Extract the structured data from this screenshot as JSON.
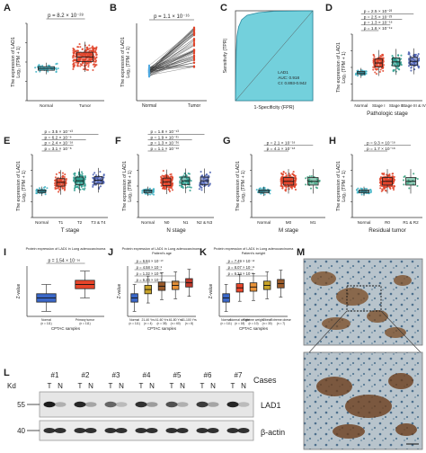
{
  "figure": {
    "panels": {
      "A": {
        "letter": "A",
        "p": "p = 8.2 × 10⁻²⁸",
        "ylabel1": "The expression of LAD1",
        "ylabel2": "Log₂ (TPM + 1)",
        "cats": [
          "Normal",
          "Tumor"
        ],
        "yticks": [
          "0",
          "3",
          "6",
          "9",
          "12"
        ]
      },
      "B": {
        "letter": "B",
        "p": "p = 1.1 × 10⁻¹⁶",
        "ylabel1": "The expression of LAD1",
        "ylabel2": "Log₂ (TPM + 1)",
        "cats": [
          "Normal",
          "Tumor"
        ],
        "yticks": [
          "0",
          "3",
          "6",
          "9",
          "12"
        ]
      },
      "C": {
        "letter": "C",
        "ylabel": "Sensitivity (TPR)",
        "xlabel": "1-Specificity (FPR)",
        "legend": [
          "LAD1",
          "AUC: 0.918",
          "CI: 0.893-0.942"
        ],
        "ticks": [
          "0.0",
          "0.2",
          "0.4",
          "0.6",
          "0.8",
          "1.0"
        ]
      },
      "D": {
        "letter": "D",
        "pvals": [
          "p = 1.6 × 10⁻¹⁹",
          "p = 1.3 × 10⁻¹⁸",
          "p = 2.5 × 10⁻²³",
          "p = 2.5 × 10⁻²³"
        ],
        "ylabel1": "The expression of LAD1",
        "ylabel2": "Log₂ (TPM + 1)",
        "xlabel": "Pathologic stage",
        "cats": [
          "Normal",
          "Stage I",
          "Stage II",
          "Stage III & IV"
        ]
      },
      "E": {
        "letter": "E",
        "pvals": [
          "p = 3.1 × 10⁻⁸",
          "p = 2.4 × 10⁻¹⁸",
          "p = 6.2 × 10⁻⁶",
          "p = 3.5 × 10⁻¹³"
        ],
        "ylabel1": "The expression of LAD1",
        "ylabel2": "Log₂ (TPM + 1)",
        "xlabel": "T stage",
        "cats": [
          "Normal",
          "T1",
          "T2",
          "T3 & T4"
        ]
      },
      "F": {
        "letter": "F",
        "pvals": [
          "p = 1.1 × 10⁻¹⁶",
          "p = 1.3 × 10⁻²⁶",
          "p = 1.9 × 10⁻²¹",
          "p = 1.8 × 10⁻¹³"
        ],
        "ylabel1": "The expression of LAD1",
        "ylabel2": "Log₂ (TPM + 1)",
        "xlabel": "N stage",
        "cats": [
          "Normal",
          "N0",
          "N1",
          "N2 & N3"
        ]
      },
      "G": {
        "letter": "G",
        "pvals": [
          "p = 4.1 × 10⁻¹⁸",
          "p = 2.1 × 10⁻¹⁸"
        ],
        "ylabel1": "The expression of LAD1",
        "ylabel2": "Log₂ (TPM + 1)",
        "xlabel": "M stage",
        "cats": [
          "Normal",
          "M0",
          "M1"
        ]
      },
      "H": {
        "letter": "H",
        "pvals": [
          "p = 1.7 × 10⁻¹⁸",
          "p = 9.3 × 10⁻¹⁸"
        ],
        "ylabel1": "The expression of LAD1",
        "ylabel2": "Log₂ (TPM + 1)",
        "xlabel": "Residual tumor",
        "cats": [
          "Normal",
          "R0",
          "R1 & R2"
        ]
      },
      "I": {
        "letter": "I",
        "title": "Protein expression of LAD1 in Lung adenocarcinoma",
        "p": "p = 1.54 × 10⁻¹⁶",
        "ylabel": "Z-value",
        "xlabel": "CPTAC samples",
        "cats": [
          "Normal\n(n = 111)",
          "Primary tumor\n(n = 111)"
        ]
      },
      "J": {
        "letter": "J",
        "title": "Protein expression of LAD1 in Lung adenocarcinoma",
        "subtitle": "Patient's age",
        "pvals": [
          "p = 6.84 × 10⁻¹⁰",
          "p = 4.58 × 10⁻⁸",
          "p = 1.32 × 10⁻²",
          "p = 6.24 × 10⁻⁷"
        ],
        "ylabel": "Z-value",
        "xlabel": "CPTAC samples",
        "cats": [
          "Normal\n(n = 111)",
          "21-40 Yrs\n(n = 4)",
          "41-60 Yrs\n(n = 38)",
          "61-80 Yrs\n(n = 60)",
          "81-100 Yrs\n(n = 8)"
        ]
      },
      "K": {
        "letter": "K",
        "title": "Protein expression of LAD1 in Lung adenocarcinoma",
        "subtitle": "Patient's weight",
        "pvals": [
          "p = 7.49 × 10⁻¹²",
          "p = 8.07 × 10⁻¹¹",
          "p = 6.24 × 10⁻⁷"
        ],
        "ylabel": "Z-value",
        "xlabel": "CPTAC samples",
        "cats": [
          "Normal\n(n = 111)",
          "Normal weight\n(n = 18)",
          "Extreme weight\n(n = 10)",
          "Obese\n(n = 30)",
          "Extreme obese\n(n = 7)"
        ]
      },
      "L": {
        "letter": "L",
        "kd": "Kd",
        "cases_label": "Cases",
        "lanes": [
          "#1",
          "#2",
          "#3",
          "#4",
          "#5",
          "#6",
          "#7"
        ],
        "tn": [
          "T",
          "N"
        ],
        "markers": [
          "55",
          "40"
        ],
        "row_labels": [
          "LAD1",
          "β-actin"
        ]
      },
      "M": {
        "letter": "M"
      }
    }
  },
  "colors": {
    "normal": "#3fb3c4",
    "tumor": "#e0442a",
    "stage2": "#2f9e8f",
    "stage3": "#4a5fb0",
    "m1": "#3aa07e",
    "blue_line": "#4fa8e0",
    "red_line": "#e0442a",
    "roc_fill": "#5bc8d6",
    "box_blue": "#3a67c8",
    "box_red": "#e8452a",
    "box_orange": "#e89238",
    "box_gold": "#c9a42a",
    "box_brown": "#9a5a2a",
    "box_darkred": "#c0392b"
  },
  "chart_data": [
    {
      "panel": "A",
      "type": "scatter",
      "title": "",
      "categories": [
        "Normal",
        "Tumor"
      ],
      "ylabel": "The expression of LAD1 Log₂ (TPM + 1)",
      "ylim": [
        0,
        12
      ],
      "box_medians": [
        5.0,
        6.8
      ],
      "p_value": "8.2 × 10⁻²⁸"
    },
    {
      "panel": "B",
      "type": "line",
      "categories": [
        "Normal",
        "Tumor"
      ],
      "ylabel": "The expression of LAD1 Log₂ (TPM + 1)",
      "ylim": [
        0,
        12
      ],
      "p_value": "1.1 × 10⁻¹⁶"
    },
    {
      "panel": "C",
      "type": "area",
      "xlabel": "1-Specificity (FPR)",
      "ylabel": "Sensitivity (TPR)",
      "auc": 0.918,
      "ci": [
        0.893,
        0.942
      ],
      "xlim": [
        0,
        1
      ],
      "ylim": [
        0,
        1
      ]
    },
    {
      "panel": "D",
      "type": "scatter",
      "categories": [
        "Normal",
        "Stage I",
        "Stage II",
        "Stage III & IV"
      ],
      "box_medians": [
        5.0,
        6.8,
        7.0,
        7.1
      ]
    },
    {
      "panel": "E",
      "type": "scatter",
      "categories": [
        "Normal",
        "T1",
        "T2",
        "T3 & T4"
      ],
      "box_medians": [
        5.0,
        6.7,
        7.0,
        7.1
      ]
    },
    {
      "panel": "F",
      "type": "scatter",
      "categories": [
        "Normal",
        "N0",
        "N1",
        "N2 & N3"
      ],
      "box_medians": [
        5.0,
        6.8,
        7.0,
        7.0
      ]
    },
    {
      "panel": "G",
      "type": "scatter",
      "categories": [
        "Normal",
        "M0",
        "M1"
      ],
      "box_medians": [
        5.0,
        6.9,
        6.9
      ]
    },
    {
      "panel": "H",
      "type": "scatter",
      "categories": [
        "Normal",
        "R0",
        "R1 & R2"
      ],
      "box_medians": [
        5.0,
        6.9,
        6.9
      ]
    },
    {
      "panel": "I",
      "type": "bar",
      "categories": [
        "Normal",
        "Primary tumor"
      ],
      "box_medians": [
        -0.8,
        0.8
      ],
      "ylim": [
        -3,
        3
      ]
    },
    {
      "panel": "J",
      "type": "bar",
      "categories": [
        "Normal",
        "21-40 Yrs",
        "41-60 Yrs",
        "61-80 Yrs",
        "81-100 Yrs"
      ],
      "box_medians": [
        -0.8,
        0.2,
        0.6,
        0.7,
        1.0
      ]
    },
    {
      "panel": "K",
      "type": "bar",
      "categories": [
        "Normal",
        "Normal weight",
        "Extreme weight",
        "Obese",
        "Extreme obese"
      ],
      "box_medians": [
        -0.8,
        0.4,
        0.5,
        0.7,
        0.9
      ]
    }
  ]
}
